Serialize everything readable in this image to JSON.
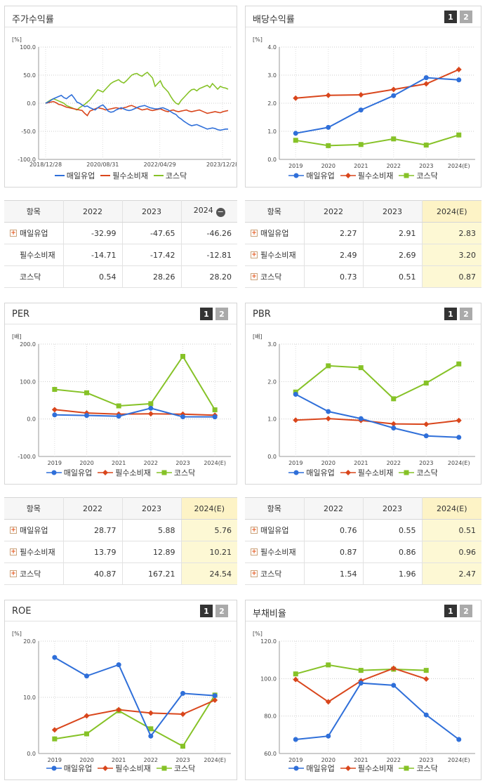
{
  "legend": [
    "매일유업",
    "필수소비재",
    "코스닥"
  ],
  "colors": {
    "s0": "#2f6fd9",
    "s1": "#d9461c",
    "s2": "#86c227"
  },
  "tab_labels": [
    "1",
    "2"
  ],
  "panels": {
    "stock": {
      "title": "주가수익률"
    },
    "div": {
      "title": "배당수익률"
    },
    "per": {
      "title": "PER"
    },
    "pbr": {
      "title": "PBR"
    },
    "roe": {
      "title": "ROE"
    },
    "debt": {
      "title": "부채비율"
    }
  },
  "tables": {
    "stock": {
      "headers": [
        "항목",
        "2022",
        "2023",
        "2024"
      ],
      "rows": [
        {
          "name": "매일유업",
          "plus": true,
          "values": [
            "-32.99",
            "-47.65",
            "-46.26"
          ]
        },
        {
          "name": "필수소비재",
          "plus": false,
          "values": [
            "-14.71",
            "-17.42",
            "-12.81"
          ]
        },
        {
          "name": "코스닥",
          "plus": false,
          "values": [
            "0.54",
            "28.26",
            "28.20"
          ]
        }
      ]
    },
    "div": {
      "headers": [
        "항목",
        "2022",
        "2023",
        "2024(E)"
      ],
      "rows": [
        {
          "name": "매일유업",
          "plus": true,
          "values": [
            "2.27",
            "2.91",
            "2.83"
          ]
        },
        {
          "name": "필수소비재",
          "plus": true,
          "values": [
            "2.49",
            "2.69",
            "3.20"
          ]
        },
        {
          "name": "코스닥",
          "plus": true,
          "values": [
            "0.73",
            "0.51",
            "0.87"
          ]
        }
      ]
    },
    "per": {
      "headers": [
        "항목",
        "2022",
        "2023",
        "2024(E)"
      ],
      "rows": [
        {
          "name": "매일유업",
          "plus": true,
          "values": [
            "28.77",
            "5.88",
            "5.76"
          ]
        },
        {
          "name": "필수소비재",
          "plus": true,
          "values": [
            "13.79",
            "12.89",
            "10.21"
          ]
        },
        {
          "name": "코스닥",
          "plus": true,
          "values": [
            "40.87",
            "167.21",
            "24.54"
          ]
        }
      ]
    },
    "pbr": {
      "headers": [
        "항목",
        "2022",
        "2023",
        "2024(E)"
      ],
      "rows": [
        {
          "name": "매일유업",
          "plus": true,
          "values": [
            "0.76",
            "0.55",
            "0.51"
          ]
        },
        {
          "name": "필수소비재",
          "plus": true,
          "values": [
            "0.87",
            "0.86",
            "0.96"
          ]
        },
        {
          "name": "코스닥",
          "plus": true,
          "values": [
            "1.54",
            "1.96",
            "2.47"
          ]
        }
      ]
    }
  },
  "chart_data": [
    {
      "id": "stock",
      "type": "line",
      "title": "주가수익률",
      "unit": "[%]",
      "ylim": [
        -100,
        100
      ],
      "yticks": [
        "100.0",
        "50.0",
        "0.0",
        "-50.0",
        "-100.0"
      ],
      "xticks": [
        "2018/12/28",
        "2020/08/31",
        "2022/04/29",
        "2023/12/28"
      ],
      "series": [
        {
          "name": "매일유업",
          "values": [
            0,
            2,
            5,
            8,
            10,
            12,
            14,
            10,
            8,
            12,
            15,
            9,
            2,
            0,
            -3,
            -6,
            -5,
            -8,
            -10,
            -12,
            -8,
            -5,
            -3,
            -8,
            -14,
            -16,
            -15,
            -12,
            -10,
            -8,
            -10,
            -12,
            -13,
            -12,
            -10,
            -8,
            -6,
            -5,
            -4,
            -6,
            -8,
            -9,
            -10,
            -10,
            -9,
            -8,
            -10,
            -12,
            -15,
            -18,
            -20,
            -25,
            -28,
            -32,
            -35,
            -38,
            -40,
            -39,
            -38,
            -40,
            -42,
            -44,
            -46,
            -45,
            -44,
            -45,
            -47,
            -48,
            -47,
            -46,
            -46
          ]
        },
        {
          "name": "필수소비재",
          "values": [
            0,
            1,
            2,
            3,
            1,
            -2,
            -3,
            -5,
            -7,
            -8,
            -9,
            -10,
            -11,
            -12,
            -13,
            -18,
            -22,
            -14,
            -12,
            -10,
            -8,
            -9,
            -10,
            -12,
            -11,
            -10,
            -9,
            -8,
            -9,
            -10,
            -8,
            -7,
            -5,
            -4,
            -6,
            -8,
            -10,
            -12,
            -11,
            -10,
            -12,
            -13,
            -12,
            -11,
            -10,
            -12,
            -14,
            -15,
            -13,
            -12,
            -14,
            -15,
            -14,
            -13,
            -12,
            -14,
            -15,
            -14,
            -13,
            -12,
            -14,
            -16,
            -18,
            -17,
            -16,
            -15,
            -16,
            -17,
            -15,
            -14,
            -13
          ]
        },
        {
          "name": "코스닥",
          "values": [
            0,
            3,
            6,
            8,
            6,
            4,
            2,
            0,
            -4,
            -6,
            -8,
            -10,
            -12,
            -8,
            -5,
            -2,
            2,
            6,
            12,
            18,
            24,
            22,
            20,
            25,
            30,
            35,
            38,
            40,
            42,
            38,
            36,
            40,
            45,
            50,
            52,
            53,
            50,
            48,
            52,
            55,
            50,
            45,
            30,
            35,
            40,
            30,
            25,
            20,
            12,
            5,
            0,
            -2,
            5,
            10,
            15,
            20,
            24,
            25,
            22,
            26,
            28,
            30,
            32,
            28,
            35,
            30,
            25,
            30,
            28,
            27,
            25
          ]
        }
      ]
    },
    {
      "id": "div",
      "type": "line",
      "title": "배당수익률",
      "unit": "[%]",
      "ylim": [
        0,
        4
      ],
      "yticks": [
        "4.0",
        "3.0",
        "2.0",
        "1.0",
        "0.0"
      ],
      "x": [
        "2019",
        "2020",
        "2021",
        "2022",
        "2023",
        "2024(E)"
      ],
      "series": [
        {
          "name": "매일유업",
          "values": [
            0.93,
            1.14,
            1.76,
            2.27,
            2.91,
            2.83
          ]
        },
        {
          "name": "필수소비재",
          "values": [
            2.18,
            2.28,
            2.3,
            2.49,
            2.69,
            3.2
          ]
        },
        {
          "name": "코스닥",
          "values": [
            0.68,
            0.49,
            0.53,
            0.73,
            0.51,
            0.87
          ]
        }
      ]
    },
    {
      "id": "per",
      "type": "line",
      "title": "PER",
      "unit": "[배]",
      "ylim": [
        -100,
        200
      ],
      "yticks": [
        "200.0",
        "100.0",
        "0.0",
        "-100.0"
      ],
      "x": [
        "2019",
        "2020",
        "2021",
        "2022",
        "2023",
        "2024(E)"
      ],
      "series": [
        {
          "name": "매일유업",
          "values": [
            11.0,
            9.5,
            7.5,
            28.77,
            5.88,
            5.76
          ]
        },
        {
          "name": "필수소비재",
          "values": [
            25.0,
            16.0,
            13.0,
            13.79,
            12.89,
            10.21
          ]
        },
        {
          "name": "코스닥",
          "values": [
            79.0,
            70.0,
            35.0,
            40.87,
            167.21,
            24.54
          ]
        }
      ]
    },
    {
      "id": "pbr",
      "type": "line",
      "title": "PBR",
      "unit": "[배]",
      "ylim": [
        0,
        3
      ],
      "yticks": [
        "3.0",
        "2.0",
        "1.0",
        "0.0"
      ],
      "x": [
        "2019",
        "2020",
        "2021",
        "2022",
        "2023",
        "2024(E)"
      ],
      "series": [
        {
          "name": "매일유업",
          "values": [
            1.66,
            1.2,
            1.01,
            0.76,
            0.55,
            0.51
          ]
        },
        {
          "name": "필수소비재",
          "values": [
            0.97,
            1.01,
            0.96,
            0.87,
            0.86,
            0.96
          ]
        },
        {
          "name": "코스닥",
          "values": [
            1.72,
            2.42,
            2.37,
            1.54,
            1.96,
            2.47
          ]
        }
      ]
    },
    {
      "id": "roe",
      "type": "line",
      "title": "ROE",
      "unit": "[%]",
      "ylim": [
        0,
        20
      ],
      "yticks": [
        "20.0",
        "10.0",
        "0.0"
      ],
      "x": [
        "2019",
        "2020",
        "2021",
        "2022",
        "2023",
        "2024(E)"
      ],
      "series": [
        {
          "name": "매일유업",
          "values": [
            17.1,
            13.8,
            15.8,
            3.1,
            10.7,
            10.3
          ]
        },
        {
          "name": "필수소비재",
          "values": [
            4.2,
            6.7,
            7.8,
            7.2,
            7.0,
            9.5
          ]
        },
        {
          "name": "코스닥",
          "values": [
            2.6,
            3.5,
            7.6,
            4.4,
            1.3,
            10.4
          ]
        }
      ]
    },
    {
      "id": "debt",
      "type": "line",
      "title": "부채비율",
      "unit": "[%]",
      "ylim": [
        60,
        120
      ],
      "yticks": [
        "120.0",
        "100.0",
        "80.0",
        "60.0"
      ],
      "x": [
        "2019",
        "2020",
        "2021",
        "2022",
        "2023",
        "2024(E)"
      ],
      "series": [
        {
          "name": "매일유업",
          "values": [
            67.5,
            69.3,
            97.6,
            96.4,
            80.6,
            67.5
          ]
        },
        {
          "name": "필수소비재",
          "values": [
            99.5,
            87.6,
            98.8,
            105.5,
            99.8,
            null
          ]
        },
        {
          "name": "코스닥",
          "values": [
            102.5,
            107.3,
            104.4,
            105.0,
            104.4,
            null
          ]
        }
      ]
    }
  ]
}
